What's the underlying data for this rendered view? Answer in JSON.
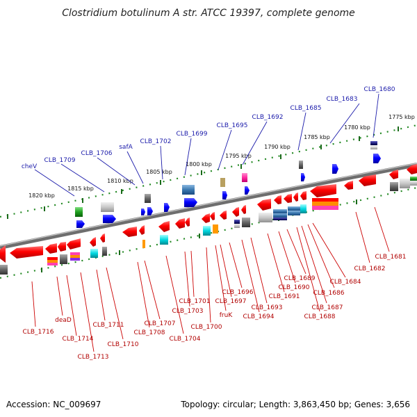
{
  "title": "Clostridium botulinum A str. ATCC 19397, complete genome",
  "accession": "Accession: NC_009697",
  "summary": "Topology: circular; Length: 3,863,450 bp; Genes: 3,656",
  "kbp_labels": [
    "1775 kbp",
    "1780 kbp",
    "1785 kbp",
    "1790 kbp",
    "1795 kbp",
    "1800 kbp",
    "1805 kbp",
    "1810 kbp",
    "1815 kbp",
    "1820 kbp"
  ],
  "top_labels": [
    "CLB_1680",
    "CLB_1683",
    "CLB_1685",
    "CLB_1692",
    "CLB_1695",
    "CLB_1699",
    "CLB_1702",
    "safA",
    "CLB_1706",
    "CLB_1709",
    "cheV"
  ],
  "bottom_labels": [
    "CLB_1681",
    "CLB_1682",
    "CLB_1684",
    "CLB_1686",
    "CLB_1687",
    "CLB_1688",
    "CLB_1689",
    "CLB_1690",
    "CLB_1691",
    "CLB_1693",
    "CLB_1694",
    "CLB_1696",
    "CLB_1697",
    "fruK",
    "CLB_1700",
    "CLB_1701",
    "CLB_1703",
    "CLB_1704",
    "CLB_1707",
    "CLB_1708",
    "CLB_1710",
    "CLB_1711",
    "CLB_1713",
    "CLB_1714",
    "deaD",
    "CLB_1716"
  ],
  "colors": {
    "forward": "#0000ee",
    "reverse": "#ee0000",
    "backbone": "#808080",
    "tick": "#228822",
    "top_label": "#1a1aaa",
    "bottom_label": "#b10000"
  }
}
